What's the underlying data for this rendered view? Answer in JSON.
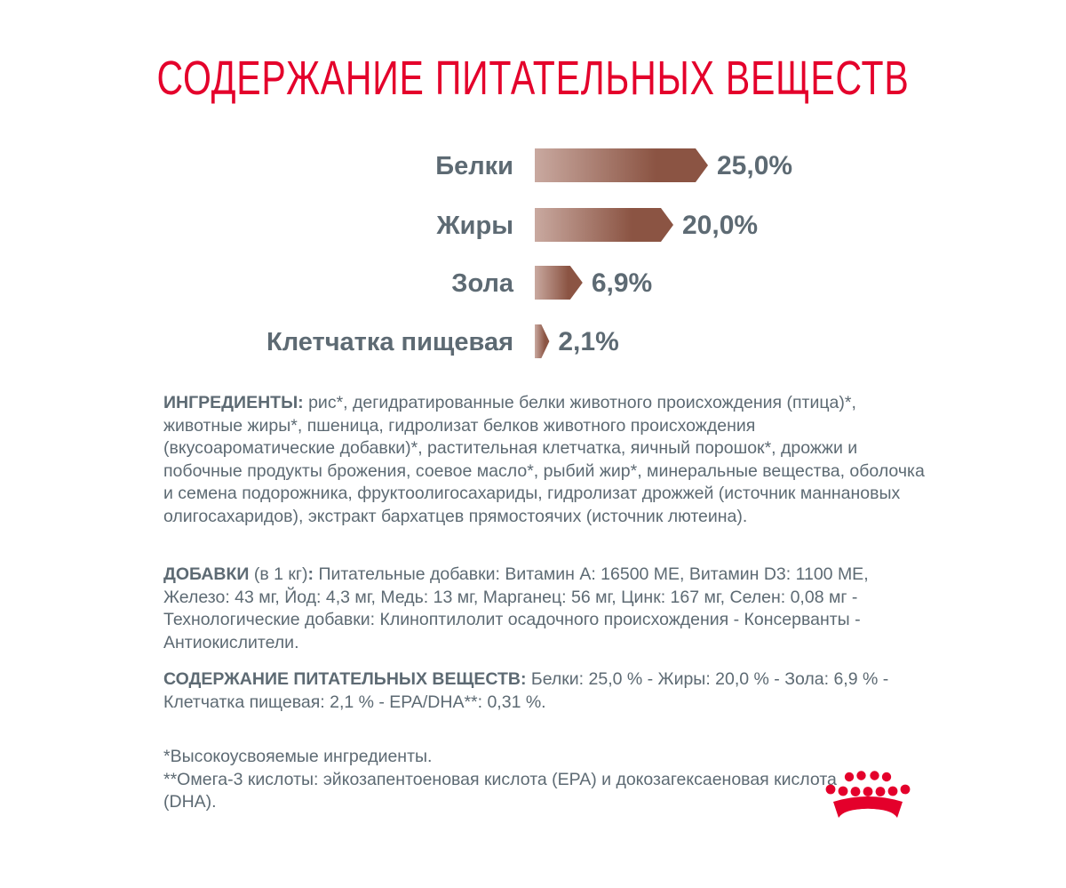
{
  "title": "СОДЕРЖАНИЕ ПИТАТЕЛЬНЫХ ВЕЩЕСТВ",
  "chart_data": {
    "type": "bar",
    "orientation": "horizontal",
    "categories": [
      "Белки",
      "Жиры",
      "Зола",
      "Клетчатка пищевая"
    ],
    "values": [
      25.0,
      20.0,
      6.9,
      2.1
    ],
    "value_labels": [
      "25,0%",
      "20,0%",
      "6,9%",
      "2,1%"
    ],
    "unit": "%",
    "grid": false,
    "legend": "none",
    "colors": {
      "bar_light": "#c9a9a0",
      "bar_dark": "#8b5443"
    }
  },
  "ingredients": {
    "label": "ИНГРЕДИЕНТЫ: ",
    "text": "рис*, дегидратированные белки животного происхождения (птица)*, животные жиры*, пшеница, гидролизат белков животного происхождения (вкусоароматические добавки)*, растительная клетчатка, яичный порошок*, дрожжи и побочные продукты брожения, соевое масло*, рыбий жир*, минеральные вещества, оболочка и семена подорожника, фруктоолигосахариды, гидролизат дрожжей (источник маннановых олигосахаридов), экстракт бархатцев прямостоячих (источник лютеина)."
  },
  "additives": {
    "label": "ДОБАВКИ",
    "qualifier": " (в 1 кг)",
    "colon": ": ",
    "text": "Питательные добавки: Витамин A: 16500 МЕ, Витамин D3: 1100 МЕ, Железо: 43 мг, Йод: 4,3 мг, Медь: 13 мг, Марганец: 56 мг, Цинк: 167 мг, Селен: 0,08 мг - Технологические добавки: Клиноптилолит осадочного происхождения - Консерванты - Антиокислители."
  },
  "nutrients": {
    "label": "СОДЕРЖАНИЕ ПИТАТЕЛЬНЫХ ВЕЩЕСТВ: ",
    "text": "Белки: 25,0 % - Жиры: 20,0 % - Зола: 6,9 % - Клетчатка пищевая: 2,1 % - EPA/DHA**: 0,31 %."
  },
  "footnotes": {
    "line1": "*Высокоусвояемые ингредиенты.",
    "line2": "**Омега-3 кислоты: эйкозапентоеновая кислота (EPA) и докозагексаеновая кислота (DHA)."
  },
  "logo": {
    "icon": "royal-canin-crown-icon",
    "color": "#e4002b"
  }
}
